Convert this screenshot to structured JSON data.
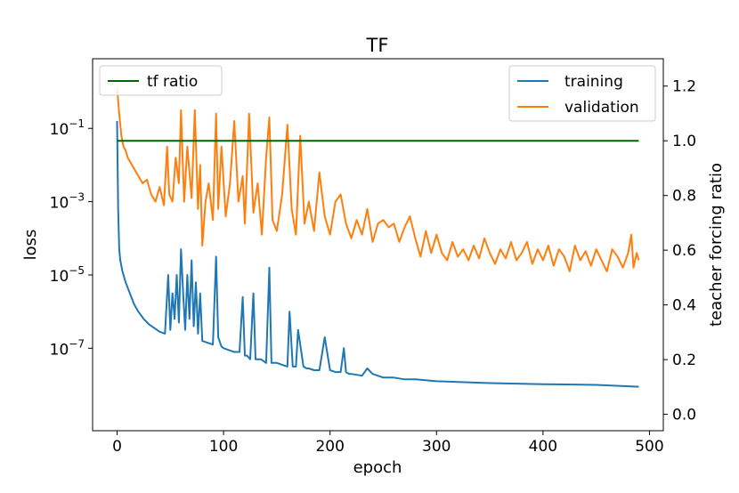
{
  "chart_data": {
    "type": "line",
    "title": "TF",
    "xlabel": "epoch",
    "ylabel": "loss",
    "y2label": "teacher forcing ratio",
    "xlim": [
      -23,
      513
    ],
    "xticks": [
      0,
      100,
      200,
      300,
      400,
      500
    ],
    "xtick_labels": [
      "0",
      "100",
      "200",
      "300",
      "400",
      "500"
    ],
    "yscale": "log",
    "ylim_exp": [
      -9.25,
      0.9
    ],
    "yticks_exp": [
      -1,
      -3,
      -5,
      -7
    ],
    "ytick_labels": [
      {
        "base": "10",
        "exp": "−1"
      },
      {
        "base": "10",
        "exp": "−3"
      },
      {
        "base": "10",
        "exp": "−5"
      },
      {
        "base": "10",
        "exp": "−7"
      }
    ],
    "y2lim": [
      -0.06,
      1.3
    ],
    "y2ticks": [
      0.0,
      0.2,
      0.4,
      0.6,
      0.8,
      1.0,
      1.2
    ],
    "y2tick_labels": [
      "0.0",
      "0.2",
      "0.4",
      "0.6",
      "0.8",
      "1.0",
      "1.2"
    ],
    "grid": false,
    "legend_left": {
      "placement": "top-left",
      "entries": [
        "tf ratio"
      ]
    },
    "legend_right": {
      "placement": "top-right",
      "entries": [
        "training",
        "validation"
      ]
    },
    "series": [
      {
        "name": "training",
        "axis": "left",
        "color": "#1f77b4",
        "x": [
          0,
          1,
          2,
          3,
          5,
          8,
          12,
          16,
          20,
          25,
          30,
          35,
          40,
          45,
          48,
          50,
          52,
          54,
          56,
          58,
          60,
          62,
          64,
          66,
          68,
          70,
          72,
          74,
          76,
          78,
          80,
          85,
          90,
          93,
          95,
          98,
          100,
          105,
          110,
          115,
          118,
          120,
          122,
          125,
          128,
          130,
          135,
          140,
          143,
          145,
          148,
          150,
          155,
          160,
          162,
          165,
          168,
          170,
          175,
          178,
          180,
          185,
          190,
          195,
          200,
          205,
          210,
          213,
          215,
          218,
          220,
          230,
          235,
          240,
          250,
          260,
          270,
          280,
          300,
          350,
          400,
          450,
          490
        ],
        "y_exp": [
          -0.8,
          -3.2,
          -4.3,
          -4.6,
          -4.9,
          -5.2,
          -5.5,
          -5.8,
          -6.0,
          -6.2,
          -6.35,
          -6.45,
          -6.55,
          -6.6,
          -5.0,
          -6.5,
          -5.5,
          -6.2,
          -5.0,
          -6.3,
          -4.3,
          -5.5,
          -6.5,
          -5.0,
          -6.2,
          -4.6,
          -6.4,
          -5.2,
          -6.6,
          -5.5,
          -6.8,
          -6.85,
          -6.9,
          -4.5,
          -6.7,
          -6.95,
          -7.0,
          -7.05,
          -7.1,
          -7.1,
          -5.6,
          -7.2,
          -7.2,
          -7.3,
          -5.5,
          -7.3,
          -7.3,
          -7.4,
          -4.8,
          -7.4,
          -7.4,
          -7.4,
          -7.45,
          -7.5,
          -6.0,
          -7.5,
          -7.5,
          -6.5,
          -7.5,
          -7.55,
          -7.55,
          -7.6,
          -7.6,
          -6.7,
          -7.6,
          -7.65,
          -7.65,
          -7.0,
          -7.65,
          -7.7,
          -7.7,
          -7.75,
          -7.55,
          -7.7,
          -7.8,
          -7.8,
          -7.85,
          -7.85,
          -7.9,
          -7.95,
          -7.98,
          -8.0,
          -8.05
        ]
      },
      {
        "name": "validation",
        "axis": "left",
        "color": "#ff7f0e",
        "x": [
          0,
          2,
          4,
          6,
          8,
          10,
          14,
          18,
          20,
          24,
          28,
          32,
          36,
          40,
          44,
          47,
          49,
          52,
          55,
          58,
          60,
          63,
          66,
          70,
          73,
          76,
          78,
          80,
          83,
          86,
          90,
          93,
          95,
          98,
          102,
          106,
          110,
          114,
          118,
          120,
          124,
          128,
          132,
          136,
          140,
          143,
          146,
          150,
          155,
          160,
          164,
          168,
          172,
          176,
          180,
          185,
          190,
          195,
          200,
          205,
          210,
          215,
          220,
          225,
          230,
          235,
          240,
          245,
          250,
          255,
          260,
          265,
          270,
          275,
          280,
          285,
          290,
          295,
          300,
          305,
          310,
          315,
          320,
          325,
          330,
          335,
          340,
          345,
          350,
          355,
          360,
          365,
          370,
          375,
          380,
          385,
          390,
          395,
          400,
          405,
          410,
          415,
          420,
          425,
          430,
          435,
          440,
          445,
          450,
          455,
          460,
          465,
          470,
          475,
          480,
          483,
          485,
          488,
          490
        ],
        "y_exp": [
          0.1,
          -0.6,
          -1.2,
          -1.5,
          -1.6,
          -1.8,
          -2.0,
          -2.2,
          -2.3,
          -2.5,
          -2.4,
          -2.8,
          -3.0,
          -2.6,
          -3.1,
          -1.5,
          -2.8,
          -3.0,
          -1.8,
          -2.5,
          -0.5,
          -3.0,
          -1.5,
          -2.9,
          -0.5,
          -3.2,
          -2.0,
          -4.2,
          -3.0,
          -2.5,
          -3.5,
          -0.6,
          -3.2,
          -1.5,
          -3.4,
          -2.5,
          -0.8,
          -3.0,
          -2.3,
          -3.6,
          -0.6,
          -3.3,
          -2.5,
          -3.9,
          -1.8,
          -0.7,
          -3.5,
          -3.8,
          -2.8,
          -0.9,
          -3.2,
          -3.9,
          -1.2,
          -3.6,
          -3.0,
          -3.8,
          -2.2,
          -3.4,
          -3.9,
          -3.0,
          -2.8,
          -3.6,
          -4.0,
          -3.5,
          -3.9,
          -3.2,
          -4.1,
          -3.6,
          -3.5,
          -3.7,
          -3.6,
          -4.1,
          -3.7,
          -3.4,
          -4.0,
          -4.5,
          -3.8,
          -4.4,
          -3.9,
          -4.4,
          -4.6,
          -4.1,
          -4.5,
          -4.3,
          -4.6,
          -4.2,
          -4.55,
          -4.0,
          -4.4,
          -4.7,
          -4.3,
          -4.55,
          -4.1,
          -4.6,
          -4.4,
          -4.1,
          -4.7,
          -4.3,
          -4.6,
          -4.2,
          -4.75,
          -4.3,
          -4.5,
          -4.9,
          -4.2,
          -4.6,
          -4.35,
          -4.75,
          -4.3,
          -4.6,
          -4.9,
          -4.3,
          -4.5,
          -4.8,
          -4.4,
          -3.9,
          -4.8,
          -4.4,
          -4.6
        ]
      },
      {
        "name": "tf ratio",
        "axis": "right",
        "color": "#006400",
        "x": [
          0,
          490
        ],
        "y": [
          1.0,
          1.0
        ]
      }
    ]
  }
}
